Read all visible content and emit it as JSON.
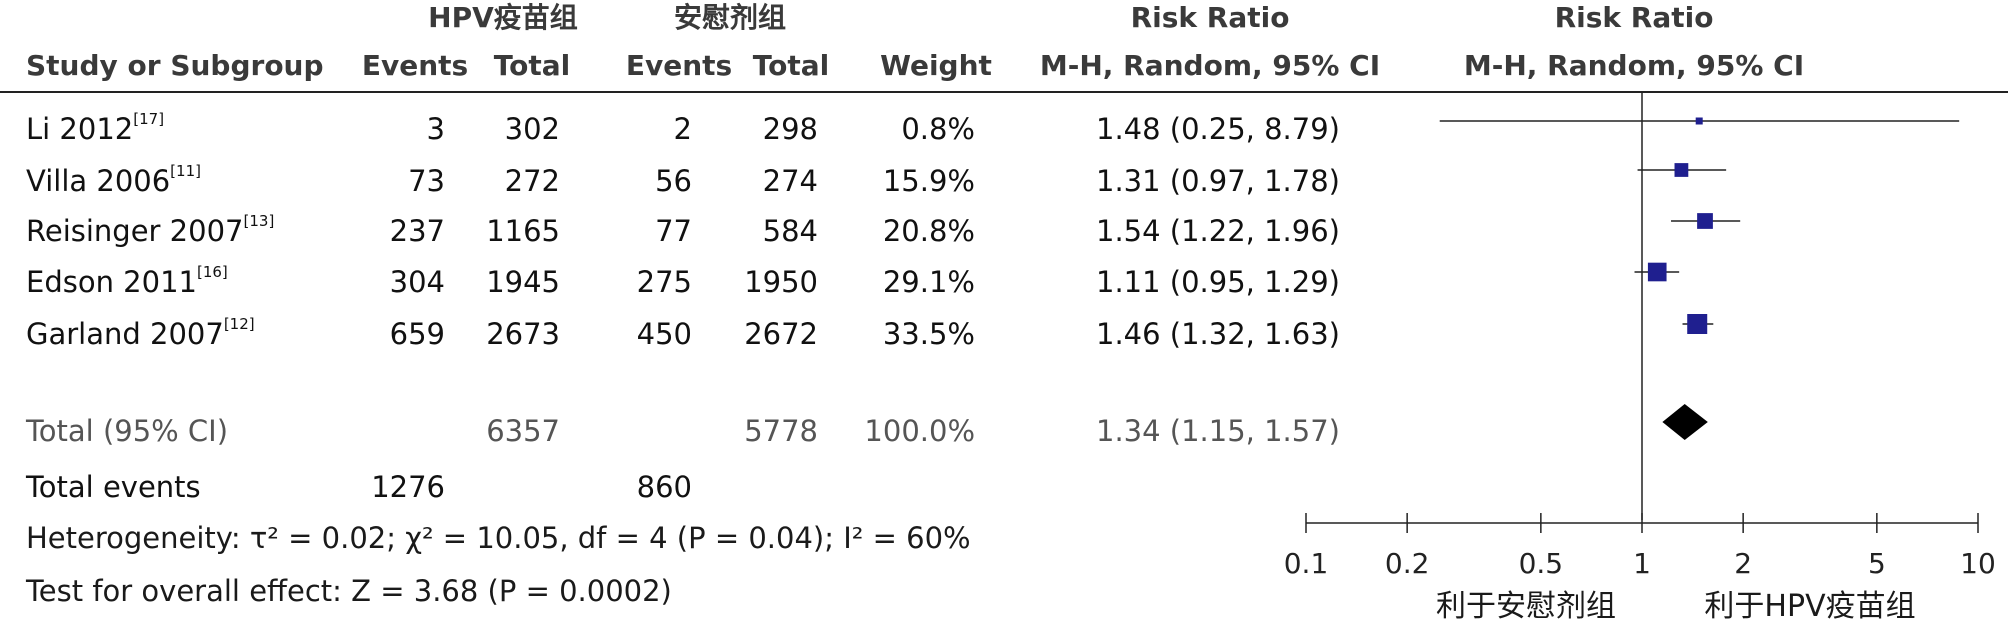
{
  "header": {
    "group1": "HPV疫苗组",
    "group2": "安慰剂组",
    "rr_title_left": "Risk Ratio",
    "rr_title_right": "Risk Ratio",
    "study": "Study or Subgroup",
    "events1": "Events",
    "total1": "Total",
    "events2": "Events",
    "total2": "Total",
    "weight": "Weight",
    "method_left": "M-H, Random, 95% CI",
    "method_right": "M-H, Random, 95% CI"
  },
  "studies": [
    {
      "name": "Li 2012",
      "ref": "[17]",
      "e1": "3",
      "t1": "302",
      "e2": "2",
      "t2": "298",
      "weight": "0.8%",
      "ci": "1.48 (0.25, 8.79)"
    },
    {
      "name": "Villa 2006",
      "ref": "[11]",
      "e1": "73",
      "t1": "272",
      "e2": "56",
      "t2": "274",
      "weight": "15.9%",
      "ci": "1.31 (0.97, 1.78)"
    },
    {
      "name": "Reisinger 2007",
      "ref": "[13]",
      "e1": "237",
      "t1": "1165",
      "e2": "77",
      "t2": "584",
      "weight": "20.8%",
      "ci": "1.54 (1.22, 1.96)"
    },
    {
      "name": "Edson 2011",
      "ref": "[16]",
      "e1": "304",
      "t1": "1945",
      "e2": "275",
      "t2": "1950",
      "weight": "29.1%",
      "ci": "1.11 (0.95, 1.29)"
    },
    {
      "name": "Garland 2007",
      "ref": "[12]",
      "e1": "659",
      "t1": "2673",
      "e2": "450",
      "t2": "2672",
      "weight": "33.5%",
      "ci": "1.46 (1.32, 1.63)"
    }
  ],
  "total": {
    "label": "Total (95% CI)",
    "t1": "6357",
    "t2": "5778",
    "weight": "100.0%",
    "ci": "1.34 (1.15, 1.57)"
  },
  "total_events": {
    "label": "Total events",
    "e1": "1276",
    "e2": "860"
  },
  "heterogeneity": "Heterogeneity: τ² = 0.02; χ² = 10.05, df = 4 (P = 0.04); I² = 60%",
  "overall_effect": "Test for overall effect: Z = 3.68 (P = 0.0002)",
  "axis": {
    "ticks": [
      "0.1",
      "0.2",
      "0.5",
      "1",
      "2",
      "5",
      "10"
    ],
    "favours_left": "利于安慰剂组",
    "favours_right": "利于HPV疫苗组"
  },
  "chart_data": {
    "type": "forest",
    "x_scale": "log",
    "xlim": [
      0.1,
      10
    ],
    "null_line": 1,
    "colors": {
      "marker": "#1f1f8f",
      "diamond": "#000000",
      "line": "#222222"
    },
    "series": [
      {
        "name": "Li 2012",
        "rr": 1.48,
        "lower": 0.25,
        "upper": 8.79,
        "weight": 0.8
      },
      {
        "name": "Villa 2006",
        "rr": 1.31,
        "lower": 0.97,
        "upper": 1.78,
        "weight": 15.9
      },
      {
        "name": "Reisinger 2007",
        "rr": 1.54,
        "lower": 1.22,
        "upper": 1.96,
        "weight": 20.8
      },
      {
        "name": "Edson 2011",
        "rr": 1.11,
        "lower": 0.95,
        "upper": 1.29,
        "weight": 29.1
      },
      {
        "name": "Garland 2007",
        "rr": 1.46,
        "lower": 1.32,
        "upper": 1.63,
        "weight": 33.5
      }
    ],
    "pooled": {
      "rr": 1.34,
      "lower": 1.15,
      "upper": 1.57
    }
  }
}
